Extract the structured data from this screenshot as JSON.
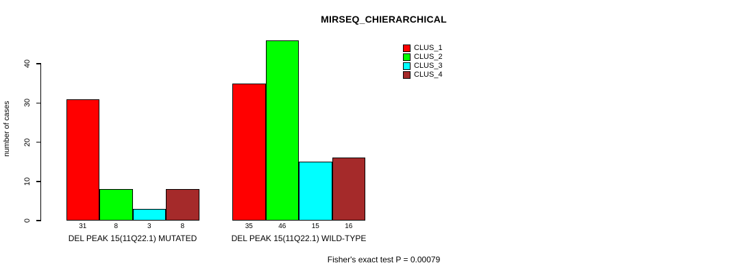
{
  "title": "MIRSEQ_CHIERARCHICAL",
  "footer": "Fisher's exact test P = 0.00079",
  "chart_data": {
    "type": "bar",
    "grouped": true,
    "title": "MIRSEQ_CHIERARCHICAL",
    "xlabel": "",
    "ylabel": "number of cases",
    "categories": [
      "DEL PEAK 15(11Q22.1) MUTATED",
      "DEL PEAK 15(11Q22.1) WILD-TYPE"
    ],
    "series": [
      {
        "name": "CLUS_1",
        "color": "#ff0000",
        "values": [
          31,
          35
        ]
      },
      {
        "name": "CLUS_2",
        "color": "#00ff00",
        "values": [
          8,
          46
        ]
      },
      {
        "name": "CLUS_3",
        "color": "#00ffff",
        "values": [
          3,
          15
        ]
      },
      {
        "name": "CLUS_4",
        "color": "#a52a2a",
        "values": [
          8,
          16
        ]
      }
    ],
    "bar_value_labels": [
      [
        "31",
        "8",
        "3",
        "8"
      ],
      [
        "35",
        "46",
        "15",
        "16"
      ]
    ],
    "yticks": [
      0,
      10,
      20,
      30,
      40
    ],
    "ylim": [
      0,
      46
    ],
    "grid": false,
    "legend_position": "top-right",
    "annotation": "Fisher's exact test P = 0.00079"
  }
}
